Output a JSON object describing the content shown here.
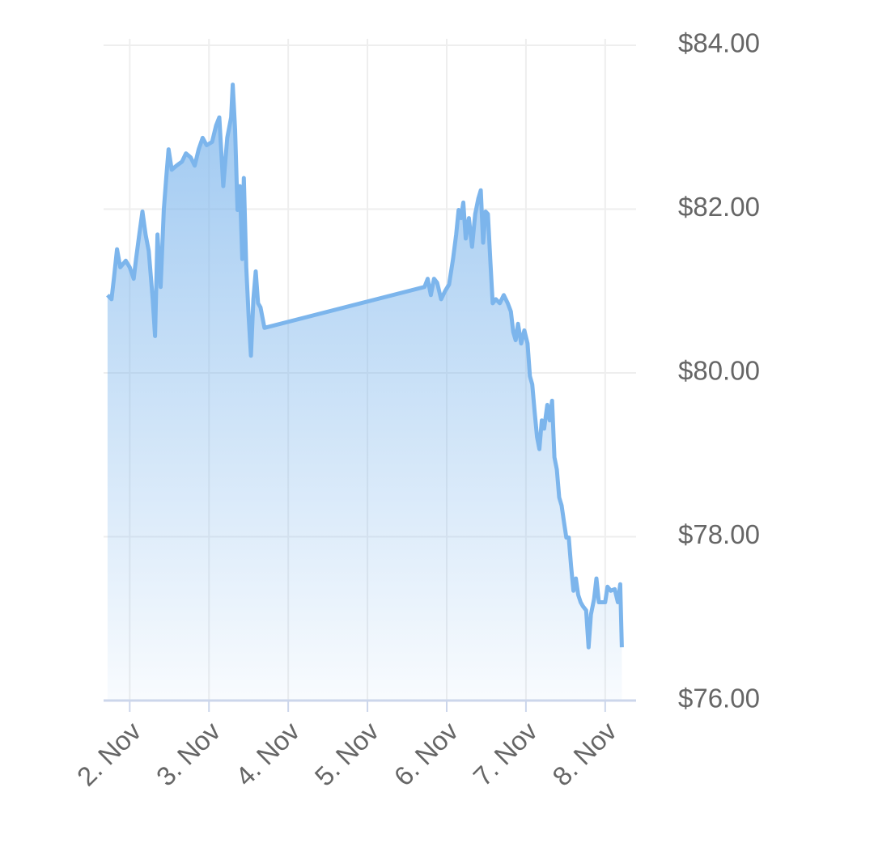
{
  "chart_data": {
    "type": "area",
    "x": [
      1.72,
      1.77,
      1.8,
      1.84,
      1.88,
      1.95,
      2.0,
      2.05,
      2.08,
      2.12,
      2.16,
      2.2,
      2.24,
      2.29,
      2.32,
      2.35,
      2.39,
      2.43,
      2.46,
      2.49,
      2.53,
      2.59,
      2.66,
      2.71,
      2.77,
      2.82,
      2.87,
      2.92,
      2.97,
      3.04,
      3.09,
      3.13,
      3.18,
      3.23,
      3.28,
      3.3,
      3.33,
      3.36,
      3.39,
      3.42,
      3.44,
      3.47,
      3.5,
      3.53,
      3.56,
      3.59,
      3.62,
      3.65,
      3.7,
      5.72,
      5.76,
      5.8,
      5.84,
      5.88,
      5.93,
      5.98,
      6.03,
      6.08,
      6.12,
      6.15,
      6.18,
      6.21,
      6.24,
      6.28,
      6.32,
      6.36,
      6.4,
      6.43,
      6.46,
      6.49,
      6.52,
      6.55,
      6.58,
      6.62,
      6.67,
      6.72,
      6.77,
      6.81,
      6.84,
      6.87,
      6.9,
      6.94,
      6.98,
      7.02,
      7.05,
      7.08,
      7.11,
      7.14,
      7.17,
      7.2,
      7.23,
      7.27,
      7.3,
      7.33,
      7.36,
      7.39,
      7.42,
      7.45,
      7.48,
      7.51,
      7.54,
      7.57,
      7.6,
      7.63,
      7.66,
      7.69,
      7.72,
      7.76,
      7.79,
      7.82,
      7.86,
      7.89,
      7.92,
      7.96,
      8.0,
      8.03,
      8.07,
      8.12,
      8.16,
      8.19,
      8.21
    ],
    "values": [
      80.95,
      80.9,
      81.15,
      81.51,
      81.29,
      81.37,
      81.29,
      81.15,
      81.39,
      81.69,
      81.97,
      81.69,
      81.49,
      80.9,
      80.45,
      81.69,
      81.05,
      81.99,
      82.38,
      82.73,
      82.48,
      82.53,
      82.58,
      82.68,
      82.63,
      82.53,
      82.73,
      82.87,
      82.78,
      82.82,
      83.02,
      83.12,
      82.28,
      82.87,
      83.12,
      83.52,
      82.97,
      81.99,
      82.28,
      81.39,
      82.38,
      81.29,
      80.7,
      80.21,
      80.9,
      81.24,
      80.85,
      80.8,
      80.55,
      81.05,
      81.15,
      80.95,
      81.15,
      81.1,
      80.9,
      81.0,
      81.08,
      81.39,
      81.69,
      81.99,
      81.89,
      82.08,
      81.64,
      81.89,
      81.54,
      81.94,
      82.13,
      82.23,
      81.59,
      81.97,
      81.94,
      81.39,
      80.85,
      80.9,
      80.85,
      80.95,
      80.85,
      80.75,
      80.5,
      80.4,
      80.6,
      80.36,
      80.52,
      80.36,
      79.96,
      79.86,
      79.52,
      79.22,
      79.07,
      79.42,
      79.32,
      79.61,
      79.42,
      79.66,
      78.97,
      78.82,
      78.48,
      78.38,
      78.18,
      77.99,
      77.99,
      77.64,
      77.34,
      77.49,
      77.29,
      77.2,
      77.15,
      77.1,
      76.65,
      77.05,
      77.24,
      77.49,
      77.2,
      77.2,
      77.2,
      77.39,
      77.34,
      77.36,
      77.2,
      77.42,
      76.65
    ],
    "color": "#7cb5ec",
    "xlim": [
      1.67,
      8.39
    ],
    "xticks": [
      {
        "value": 2,
        "label": "2. Nov"
      },
      {
        "value": 3,
        "label": "3. Nov"
      },
      {
        "value": 4,
        "label": "4. Nov"
      },
      {
        "value": 5,
        "label": "5. Nov"
      },
      {
        "value": 6,
        "label": "6. Nov"
      },
      {
        "value": 7,
        "label": "7. Nov"
      },
      {
        "value": 8,
        "label": "8. Nov"
      }
    ],
    "ylim": [
      76,
      84
    ],
    "yticks": [
      {
        "value": 76,
        "label": "$76.00"
      },
      {
        "value": 78,
        "label": "$78.00"
      },
      {
        "value": 80,
        "label": "$80.00"
      },
      {
        "value": 82,
        "label": "$82.00"
      },
      {
        "value": 84,
        "label": "$84.00"
      }
    ],
    "grid": true
  }
}
